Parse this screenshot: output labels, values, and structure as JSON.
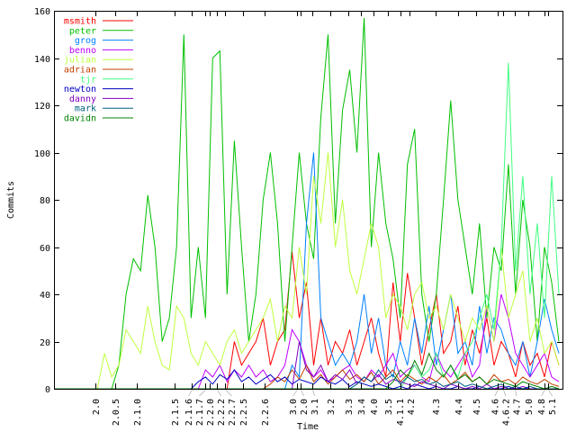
{
  "chart_data": {
    "type": "line",
    "title": "",
    "xlabel": "Time",
    "ylabel": "Commits",
    "ylim": [
      0,
      160
    ],
    "yticks": [
      0,
      20,
      40,
      60,
      80,
      100,
      120,
      140,
      160
    ],
    "xlim": [
      0,
      141
    ],
    "x_start": 0,
    "x_step": 2,
    "grid": false,
    "legend_position": "top-left",
    "xticks": [
      {
        "label": "2.0",
        "x": 11.5
      },
      {
        "label": "2.0.5",
        "x": 17
      },
      {
        "label": "2.1.0",
        "x": 23
      },
      {
        "label": "2.1.5",
        "x": 33.5
      },
      {
        "label": "2.1.6",
        "x": 38.2
      },
      {
        "label": "2.1.7",
        "x": 42
      },
      {
        "label": "2.2.0",
        "x": 43.2
      },
      {
        "label": "2.2.2",
        "x": 45.2
      },
      {
        "label": "2.2.7",
        "x": 47.5
      },
      {
        "label": "2.2.5",
        "x": 52.5
      },
      {
        "label": "2.2.6",
        "x": 58.5
      },
      {
        "label": "3.0",
        "x": 67.5
      },
      {
        "label": "2.0",
        "x": 68.5
      },
      {
        "label": "3.1",
        "x": 71.5
      },
      {
        "label": "3.2",
        "x": 76.5
      },
      {
        "label": "3.3",
        "x": 81.5
      },
      {
        "label": "3.4",
        "x": 85.2
      },
      {
        "label": "4.0",
        "x": 88.5
      },
      {
        "label": "3.5",
        "x": 92.5
      },
      {
        "label": "4.1.1",
        "x": 96
      },
      {
        "label": "4.2",
        "x": 98.5
      },
      {
        "label": "4.3",
        "x": 105.7
      },
      {
        "label": "4.4",
        "x": 112
      },
      {
        "label": "4.5",
        "x": 117
      },
      {
        "label": "4.6",
        "x": 123
      },
      {
        "label": "4.6.2",
        "x": 124.5
      },
      {
        "label": "4.7",
        "x": 127.7
      },
      {
        "label": "5.0",
        "x": 131.5
      },
      {
        "label": "4.8",
        "x": 136
      },
      {
        "label": "5.1",
        "x": 137
      }
    ],
    "series": [
      {
        "name": "msmith",
        "color": "#ff0000",
        "values": [
          0,
          0,
          0,
          0,
          0,
          0,
          0,
          0,
          0,
          0,
          0,
          0,
          0,
          0,
          0,
          0,
          0,
          0,
          0,
          0,
          0,
          0,
          0,
          0,
          0,
          20,
          10,
          15,
          20,
          30,
          10,
          20,
          25,
          58,
          30,
          45,
          10,
          30,
          10,
          20,
          15,
          25,
          10,
          20,
          30,
          15,
          5,
          45,
          20,
          49,
          30,
          10,
          25,
          40,
          15,
          20,
          35,
          10,
          25,
          15,
          30,
          10,
          20,
          15,
          5,
          20,
          10,
          15,
          5,
          20,
          10
        ]
      },
      {
        "name": "peter",
        "color": "#00c000",
        "values": [
          0,
          0,
          0,
          0,
          0,
          0,
          0,
          0,
          0,
          10,
          40,
          55,
          50,
          82,
          60,
          20,
          30,
          60,
          150,
          30,
          60,
          30,
          140,
          143,
          40,
          105,
          60,
          20,
          40,
          80,
          100,
          70,
          20,
          60,
          100,
          70,
          55,
          115,
          150,
          70,
          118,
          135,
          100,
          157,
          60,
          100,
          70,
          55,
          30,
          95,
          110,
          40,
          20,
          40,
          80,
          122,
          80,
          60,
          40,
          70,
          30,
          60,
          50,
          95,
          40,
          80,
          60,
          20,
          60,
          45,
          20
        ]
      },
      {
        "name": "grog",
        "color": "#0080ff",
        "values": [
          0,
          0,
          0,
          0,
          0,
          0,
          0,
          0,
          0,
          0,
          0,
          0,
          0,
          0,
          0,
          0,
          0,
          0,
          0,
          0,
          0,
          0,
          0,
          0,
          0,
          0,
          0,
          0,
          0,
          0,
          0,
          0,
          0,
          10,
          5,
          70,
          100,
          30,
          20,
          10,
          15,
          10,
          20,
          40,
          15,
          30,
          10,
          5,
          20,
          10,
          30,
          15,
          35,
          10,
          25,
          40,
          15,
          20,
          10,
          35,
          15,
          30,
          25,
          15,
          10,
          20,
          5,
          20,
          38,
          25,
          15
        ]
      },
      {
        "name": "benno",
        "color": "#c000ff",
        "values": [
          0,
          0,
          0,
          0,
          0,
          0,
          0,
          0,
          0,
          0,
          0,
          0,
          0,
          0,
          0,
          0,
          0,
          0,
          0,
          0,
          0,
          8,
          5,
          10,
          3,
          8,
          5,
          10,
          5,
          8,
          3,
          5,
          10,
          25,
          20,
          10,
          5,
          8,
          3,
          5,
          8,
          10,
          5,
          3,
          8,
          5,
          10,
          15,
          5,
          8,
          10,
          5,
          3,
          15,
          8,
          5,
          10,
          15,
          5,
          10,
          35,
          20,
          40,
          30,
          15,
          10,
          5,
          10,
          15,
          5,
          3
        ]
      },
      {
        "name": "julian",
        "color": "#c0ff40",
        "values": [
          0,
          0,
          0,
          0,
          0,
          0,
          0,
          15,
          5,
          10,
          25,
          20,
          15,
          35,
          20,
          10,
          8,
          35,
          30,
          15,
          10,
          20,
          15,
          10,
          20,
          25,
          15,
          20,
          25,
          30,
          38,
          20,
          35,
          30,
          60,
          40,
          90,
          70,
          100,
          60,
          80,
          50,
          40,
          55,
          70,
          60,
          30,
          40,
          35,
          25,
          40,
          45,
          30,
          35,
          25,
          40,
          30,
          20,
          30,
          25,
          35,
          20,
          60,
          30,
          40,
          50,
          20,
          30,
          15,
          20,
          10
        ]
      },
      {
        "name": "adrian",
        "color": "#c04000",
        "values": [
          0,
          0,
          0,
          0,
          0,
          0,
          0,
          0,
          0,
          0,
          0,
          0,
          0,
          0,
          0,
          0,
          0,
          0,
          0,
          0,
          0,
          0,
          0,
          0,
          0,
          0,
          0,
          0,
          0,
          0,
          2,
          5,
          3,
          8,
          4,
          10,
          3,
          6,
          2,
          5,
          8,
          4,
          6,
          3,
          7,
          2,
          5,
          8,
          3,
          6,
          4,
          2,
          5,
          3,
          6,
          2,
          4,
          7,
          3,
          5,
          2,
          6,
          3,
          4,
          2,
          5,
          3,
          2,
          4,
          2,
          1
        ]
      },
      {
        "name": "tjr",
        "color": "#40ff80",
        "values": [
          0,
          0,
          0,
          0,
          0,
          0,
          0,
          0,
          0,
          0,
          0,
          0,
          0,
          0,
          0,
          0,
          0,
          0,
          0,
          0,
          0,
          0,
          0,
          0,
          0,
          0,
          0,
          0,
          0,
          0,
          0,
          0,
          0,
          0,
          0,
          0,
          0,
          0,
          0,
          0,
          0,
          0,
          0,
          0,
          0,
          0,
          0,
          0,
          0,
          5,
          10,
          5,
          8,
          15,
          5,
          10,
          5,
          15,
          20,
          30,
          40,
          25,
          60,
          138,
          50,
          90,
          40,
          70,
          30,
          90,
          40
        ]
      },
      {
        "name": "newton",
        "color": "#0000c0",
        "values": [
          0,
          0,
          0,
          0,
          0,
          0,
          0,
          0,
          0,
          0,
          0,
          0,
          0,
          0,
          0,
          0,
          0,
          0,
          0,
          0,
          3,
          5,
          2,
          6,
          4,
          8,
          3,
          5,
          2,
          4,
          6,
          3,
          5,
          2,
          4,
          3,
          2,
          5,
          3,
          2,
          4,
          1,
          3,
          2,
          1,
          2,
          1,
          0,
          1,
          0,
          2,
          1,
          0,
          1,
          0,
          0,
          1,
          0,
          0,
          1,
          0,
          0,
          0,
          1,
          0,
          0,
          0,
          0,
          0,
          0,
          0
        ]
      },
      {
        "name": "danny",
        "color": "#8000c0",
        "values": [
          0,
          0,
          0,
          0,
          0,
          0,
          0,
          0,
          0,
          0,
          0,
          0,
          0,
          0,
          0,
          0,
          0,
          0,
          0,
          0,
          0,
          0,
          0,
          0,
          0,
          0,
          0,
          0,
          0,
          0,
          0,
          0,
          0,
          0,
          20,
          8,
          5,
          10,
          3,
          6,
          4,
          8,
          2,
          5,
          3,
          6,
          2,
          4,
          3,
          2,
          1,
          3,
          2,
          1,
          0,
          2,
          1,
          0,
          1,
          0,
          2,
          0,
          1,
          0,
          0,
          1,
          0,
          0,
          0,
          0,
          0
        ]
      },
      {
        "name": "mark",
        "color": "#006080",
        "values": [
          0,
          0,
          0,
          0,
          0,
          0,
          0,
          0,
          0,
          0,
          0,
          0,
          0,
          0,
          0,
          0,
          0,
          0,
          0,
          0,
          0,
          0,
          0,
          0,
          0,
          0,
          0,
          0,
          0,
          0,
          0,
          0,
          0,
          0,
          0,
          0,
          0,
          0,
          0,
          0,
          0,
          0,
          2,
          5,
          3,
          8,
          4,
          6,
          2,
          5,
          3,
          4,
          2,
          3,
          1,
          2,
          3,
          1,
          2,
          1,
          0,
          1,
          2,
          0,
          1,
          0,
          1,
          0,
          0,
          0,
          0
        ]
      },
      {
        "name": "davidn",
        "color": "#008000",
        "values": [
          0,
          0,
          0,
          0,
          0,
          0,
          0,
          0,
          0,
          0,
          0,
          0,
          0,
          0,
          0,
          0,
          0,
          0,
          0,
          0,
          0,
          0,
          0,
          0,
          0,
          0,
          0,
          0,
          0,
          0,
          0,
          0,
          0,
          0,
          0,
          0,
          0,
          0,
          0,
          0,
          0,
          0,
          0,
          0,
          0,
          0,
          0,
          3,
          8,
          5,
          12,
          6,
          15,
          8,
          5,
          10,
          4,
          6,
          3,
          5,
          2,
          4,
          3,
          2,
          1,
          3,
          2,
          1,
          0,
          1,
          0
        ]
      }
    ]
  }
}
